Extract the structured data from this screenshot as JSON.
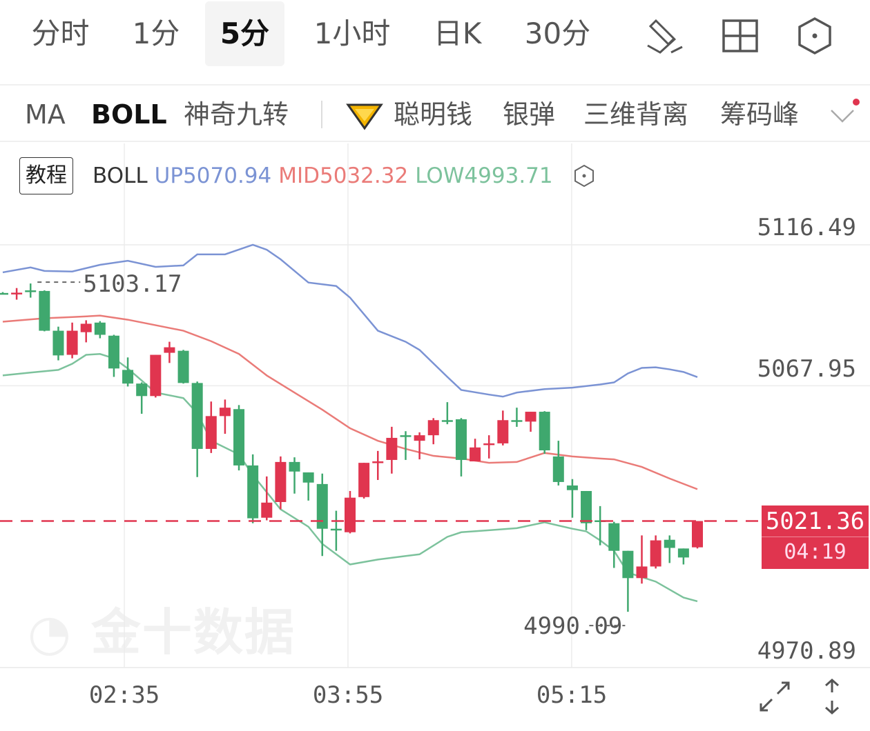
{
  "tabs": [
    {
      "label": "分时"
    },
    {
      "label": "1分"
    },
    {
      "label": "5分",
      "active": true
    },
    {
      "label": "1小时"
    },
    {
      "label": "日K"
    },
    {
      "label": "30分"
    }
  ],
  "toolbar_icons": [
    "draw-pen-icon",
    "grid-layout-icon",
    "hexagon-settings-icon"
  ],
  "indicators": [
    {
      "label": "MA"
    },
    {
      "label": "BOLL",
      "active": true
    },
    {
      "label": "神奇九转"
    },
    {
      "label": "聪明钱",
      "icon": "diamond-icon"
    },
    {
      "label": "银弹"
    },
    {
      "label": "三维背离"
    },
    {
      "label": "筹码峰"
    }
  ],
  "legend": {
    "tutorial": "教程",
    "name": "BOLL",
    "up": "UP5070.94",
    "mid": "MID5032.32",
    "low": "LOW4993.71"
  },
  "colors": {
    "up_candle": "#e0354f",
    "down_candle": "#3fa86e",
    "upper_band": "#7b93d4",
    "mid_band": "#ea7b78",
    "lower_band": "#7cc29c"
  },
  "watermark": "金十数据",
  "chart_data": {
    "type": "candlestick",
    "indicator": "BOLL",
    "ylim": [
      4970.89,
      5116.49
    ],
    "y_ticks": [
      "5116.49",
      "5067.95",
      "4970.89"
    ],
    "x_ticks": [
      {
        "label": "02:35",
        "index": 8.75
      },
      {
        "label": "03:55",
        "index": 24.85
      },
      {
        "label": "05:15",
        "index": 40.95
      }
    ],
    "grid": true,
    "last_price": "5021.36",
    "countdown": "04:19",
    "high_label": "5103.17",
    "high_index": 2,
    "low_label": "4990.09",
    "low_index": 45,
    "ohlc": [
      [
        5099.9,
        5100.2,
        5099.5,
        5099.7
      ],
      [
        5099.8,
        5101.6,
        5097.6,
        5100.0
      ],
      [
        5100.8,
        5103.17,
        5098.3,
        5100.5
      ],
      [
        5100.6,
        5100.8,
        5086.7,
        5086.9
      ],
      [
        5086.9,
        5088.3,
        5076.7,
        5078.4
      ],
      [
        5078.6,
        5089.7,
        5077.4,
        5086.9
      ],
      [
        5086.4,
        5090.5,
        5082.9,
        5089.3
      ],
      [
        5089.7,
        5090.2,
        5084.3,
        5085.5
      ],
      [
        5085.2,
        5085.5,
        5071.0,
        5073.9
      ],
      [
        5073.4,
        5077.7,
        5067.7,
        5068.7
      ],
      [
        5068.7,
        5069.1,
        5058.3,
        5064.4
      ],
      [
        5064.4,
        5078.6,
        5063.9,
        5078.6
      ],
      [
        5079.3,
        5083.1,
        5075.8,
        5081.2
      ],
      [
        5080.0,
        5080.3,
        5068.7,
        5068.9
      ],
      [
        5068.9,
        5069.4,
        5036.5,
        5046.2
      ],
      [
        5046.2,
        5062.5,
        5044.8,
        5057.5
      ],
      [
        5057.5,
        5063.2,
        5051.4,
        5060.4
      ],
      [
        5059.9,
        5061.3,
        5038.8,
        5040.5
      ],
      [
        5040.5,
        5044.3,
        5020.6,
        5022.3
      ],
      [
        5022.5,
        5036.7,
        5021.6,
        5027.7
      ],
      [
        5027.9,
        5043.6,
        5025.4,
        5041.7
      ],
      [
        5041.7,
        5043.3,
        5030.8,
        5038.4
      ],
      [
        5038.1,
        5038.1,
        5028.4,
        5034.6
      ],
      [
        5034.1,
        5037.7,
        5009.3,
        5018.7
      ],
      [
        5018.7,
        5024.9,
        5011.1,
        5018.5
      ],
      [
        5017.5,
        5031.7,
        5017.1,
        5029.4
      ],
      [
        5029.6,
        5041.4,
        5029.1,
        5041.4
      ],
      [
        5041.7,
        5045.5,
        5035.5,
        5041.9
      ],
      [
        5042.4,
        5053.8,
        5037.7,
        5050.0
      ],
      [
        5050.9,
        5052.3,
        5042.4,
        5050.7
      ],
      [
        5049.0,
        5051.9,
        5042.6,
        5050.9
      ],
      [
        5050.9,
        5056.8,
        5047.8,
        5056.1
      ],
      [
        5056.1,
        5062.3,
        5054.7,
        5055.9
      ],
      [
        5056.4,
        5056.8,
        5036.7,
        5042.4
      ],
      [
        5041.9,
        5049.7,
        5041.9,
        5046.7
      ],
      [
        5047.8,
        5050.9,
        5042.9,
        5048.1
      ],
      [
        5048.1,
        5059.4,
        5047.4,
        5056.1
      ],
      [
        5056.1,
        5060.4,
        5053.8,
        5055.9
      ],
      [
        5055.6,
        5059.0,
        5052.1,
        5059.0
      ],
      [
        5059.0,
        5059.2,
        5044.5,
        5045.7
      ],
      [
        5043.6,
        5049.0,
        5033.6,
        5034.8
      ],
      [
        5033.6,
        5035.8,
        5022.5,
        5032.0
      ],
      [
        5031.7,
        5031.7,
        5018.2,
        5020.6
      ],
      [
        5021.6,
        5026.5,
        5013.0,
        5021.4
      ],
      [
        5020.6,
        5021.1,
        5005.2,
        5011.1
      ],
      [
        5011.1,
        5011.1,
        4990.09,
        5001.7
      ],
      [
        5001.7,
        5016.4,
        4999.8,
        5005.7
      ],
      [
        5005.7,
        5016.4,
        5005.0,
        5014.7
      ],
      [
        5014.9,
        5016.4,
        5006.9,
        5012.1
      ],
      [
        5011.9,
        5011.9,
        5006.4,
        5008.8
      ],
      [
        5012.3,
        5021.1,
        5011.9,
        5021.36
      ]
    ],
    "bands": {
      "upper": [
        [
          0,
          5107.0
        ],
        [
          2,
          5108.7
        ],
        [
          3,
          5107.5
        ],
        [
          5,
          5107.3
        ],
        [
          7,
          5109.6
        ],
        [
          9,
          5111.0
        ],
        [
          11,
          5108.9
        ],
        [
          13,
          5109.4
        ],
        [
          14,
          5113.2
        ],
        [
          16,
          5113.2
        ],
        [
          18,
          5116.5
        ],
        [
          19,
          5114.8
        ],
        [
          20,
          5111.5
        ],
        [
          22,
          5103.5
        ],
        [
          24,
          5102.3
        ],
        [
          25,
          5098.3
        ],
        [
          27,
          5086.9
        ],
        [
          29,
          5083.1
        ],
        [
          30,
          5080.3
        ],
        [
          32,
          5071.0
        ],
        [
          33,
          5066.5
        ],
        [
          35,
          5064.9
        ],
        [
          36,
          5064.2
        ],
        [
          37,
          5065.6
        ],
        [
          39,
          5066.8
        ],
        [
          41,
          5067.3
        ],
        [
          43,
          5068.4
        ],
        [
          44,
          5069.1
        ],
        [
          45,
          5072.2
        ],
        [
          46,
          5074.1
        ],
        [
          47,
          5074.3
        ],
        [
          48,
          5073.6
        ],
        [
          49,
          5072.7
        ],
        [
          50,
          5070.94
        ]
      ],
      "mid": [
        [
          0,
          5090.0
        ],
        [
          3,
          5091.2
        ],
        [
          5,
          5091.6
        ],
        [
          7,
          5092.1
        ],
        [
          9,
          5090.7
        ],
        [
          11,
          5088.8
        ],
        [
          13,
          5086.9
        ],
        [
          15,
          5083.3
        ],
        [
          17,
          5078.9
        ],
        [
          19,
          5071.5
        ],
        [
          21,
          5065.6
        ],
        [
          23,
          5059.7
        ],
        [
          25,
          5053.3
        ],
        [
          27,
          5049.0
        ],
        [
          29,
          5046.2
        ],
        [
          31,
          5043.8
        ],
        [
          33,
          5042.9
        ],
        [
          35,
          5041.4
        ],
        [
          37,
          5041.7
        ],
        [
          39,
          5044.8
        ],
        [
          41,
          5043.6
        ],
        [
          43,
          5042.9
        ],
        [
          44,
          5042.6
        ],
        [
          46,
          5040.0
        ],
        [
          48,
          5036.0
        ],
        [
          50,
          5032.32
        ]
      ],
      "lower": [
        [
          0,
          5071.5
        ],
        [
          2,
          5072.5
        ],
        [
          4,
          5073.4
        ],
        [
          5,
          5075.5
        ],
        [
          6,
          5078.6
        ],
        [
          7,
          5078.9
        ],
        [
          8,
          5077.4
        ],
        [
          9,
          5073.9
        ],
        [
          11,
          5065.6
        ],
        [
          13,
          5063.7
        ],
        [
          14,
          5058.5
        ],
        [
          15,
          5049.0
        ],
        [
          17,
          5044.3
        ],
        [
          18,
          5037.2
        ],
        [
          20,
          5025.4
        ],
        [
          22,
          5019.4
        ],
        [
          23,
          5013.5
        ],
        [
          25,
          5006.4
        ],
        [
          27,
          5008.1
        ],
        [
          29,
          5009.3
        ],
        [
          30,
          5009.9
        ],
        [
          32,
          5015.9
        ],
        [
          33,
          5017.5
        ],
        [
          35,
          5018.2
        ],
        [
          37,
          5018.9
        ],
        [
          39,
          5020.9
        ],
        [
          41,
          5018.7
        ],
        [
          42,
          5017.8
        ],
        [
          43,
          5014.7
        ],
        [
          44,
          5011.1
        ],
        [
          45,
          5003.6
        ],
        [
          47,
          5000.5
        ],
        [
          49,
          4995.0
        ],
        [
          50,
          4993.71
        ]
      ]
    }
  },
  "bottom_icons": [
    "expand-icon",
    "vertical-scale-icon"
  ]
}
